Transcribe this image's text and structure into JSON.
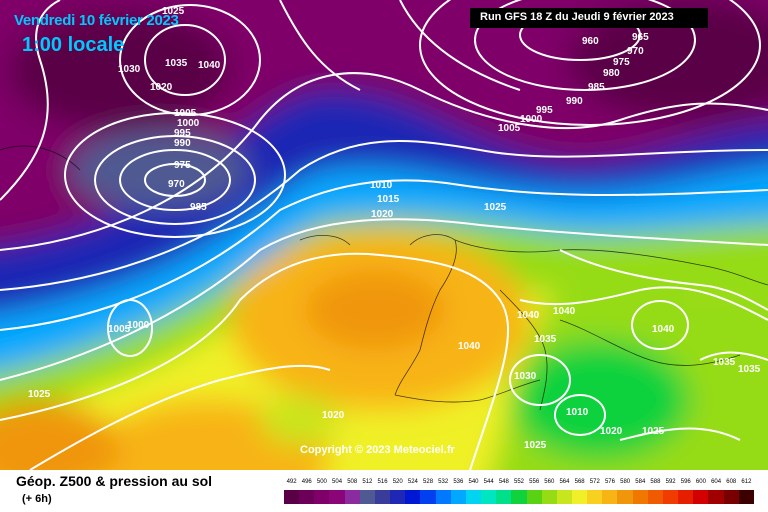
{
  "header": {
    "date": "Vendredi 10 février 2023",
    "time": "1:00 locale",
    "run": "Run GFS 18 Z du Jeudi 9 février 2023"
  },
  "copyright": "Copyright © 2023 Meteociel.fr",
  "legend": {
    "title": "Géop. Z500 & pression au sol",
    "subtitle": "(+ 6h)",
    "scale": [
      {
        "value": "492",
        "color": "#5a0046"
      },
      {
        "value": "496",
        "color": "#6c0058"
      },
      {
        "value": "500",
        "color": "#7e0068"
      },
      {
        "value": "504",
        "color": "#8a0678"
      },
      {
        "value": "508",
        "color": "#8a2ba0"
      },
      {
        "value": "512",
        "color": "#505a92"
      },
      {
        "value": "516",
        "color": "#3a3c9a"
      },
      {
        "value": "520",
        "color": "#1e28b4"
      },
      {
        "value": "524",
        "color": "#0018d4"
      },
      {
        "value": "528",
        "color": "#0040f0"
      },
      {
        "value": "532",
        "color": "#0078ff"
      },
      {
        "value": "536",
        "color": "#00a8ff"
      },
      {
        "value": "540",
        "color": "#00d4f0"
      },
      {
        "value": "544",
        "value_note": "",
        "color": "#00e6c0"
      },
      {
        "value": "548",
        "color": "#00e08a"
      },
      {
        "value": "552",
        "color": "#10d23c"
      },
      {
        "value": "556",
        "color": "#5ad214"
      },
      {
        "value": "560",
        "color": "#96dc14"
      },
      {
        "value": "564",
        "color": "#c8e61e"
      },
      {
        "value": "568",
        "color": "#f0f028"
      },
      {
        "value": "572",
        "color": "#f8d020"
      },
      {
        "value": "576",
        "color": "#f8b414"
      },
      {
        "value": "580",
        "color": "#f0960a"
      },
      {
        "value": "584",
        "color": "#f07800"
      },
      {
        "value": "588",
        "color": "#f05a00"
      },
      {
        "value": "592",
        "color": "#f03c00"
      },
      {
        "value": "596",
        "color": "#e61e00"
      },
      {
        "value": "600",
        "color": "#d20000"
      },
      {
        "value": "604",
        "color": "#a00000"
      },
      {
        "value": "608",
        "color": "#780000"
      },
      {
        "value": "612",
        "color": "#3c0000"
      }
    ]
  },
  "isobar_labels": [
    "1025",
    "1035",
    "1040",
    "1030",
    "1020",
    "1005",
    "1000",
    "995",
    "990",
    "985",
    "975",
    "970",
    "1010",
    "1015",
    "1020",
    "1025",
    "1005",
    "1000",
    "995",
    "990",
    "985",
    "980",
    "975",
    "970",
    "965",
    "960",
    "1040",
    "1040",
    "1035",
    "1040",
    "1040",
    "1035",
    "1035",
    "1030",
    "1010",
    "1020",
    "1025",
    "1025",
    "1020",
    "1005",
    "1000",
    "1025"
  ]
}
